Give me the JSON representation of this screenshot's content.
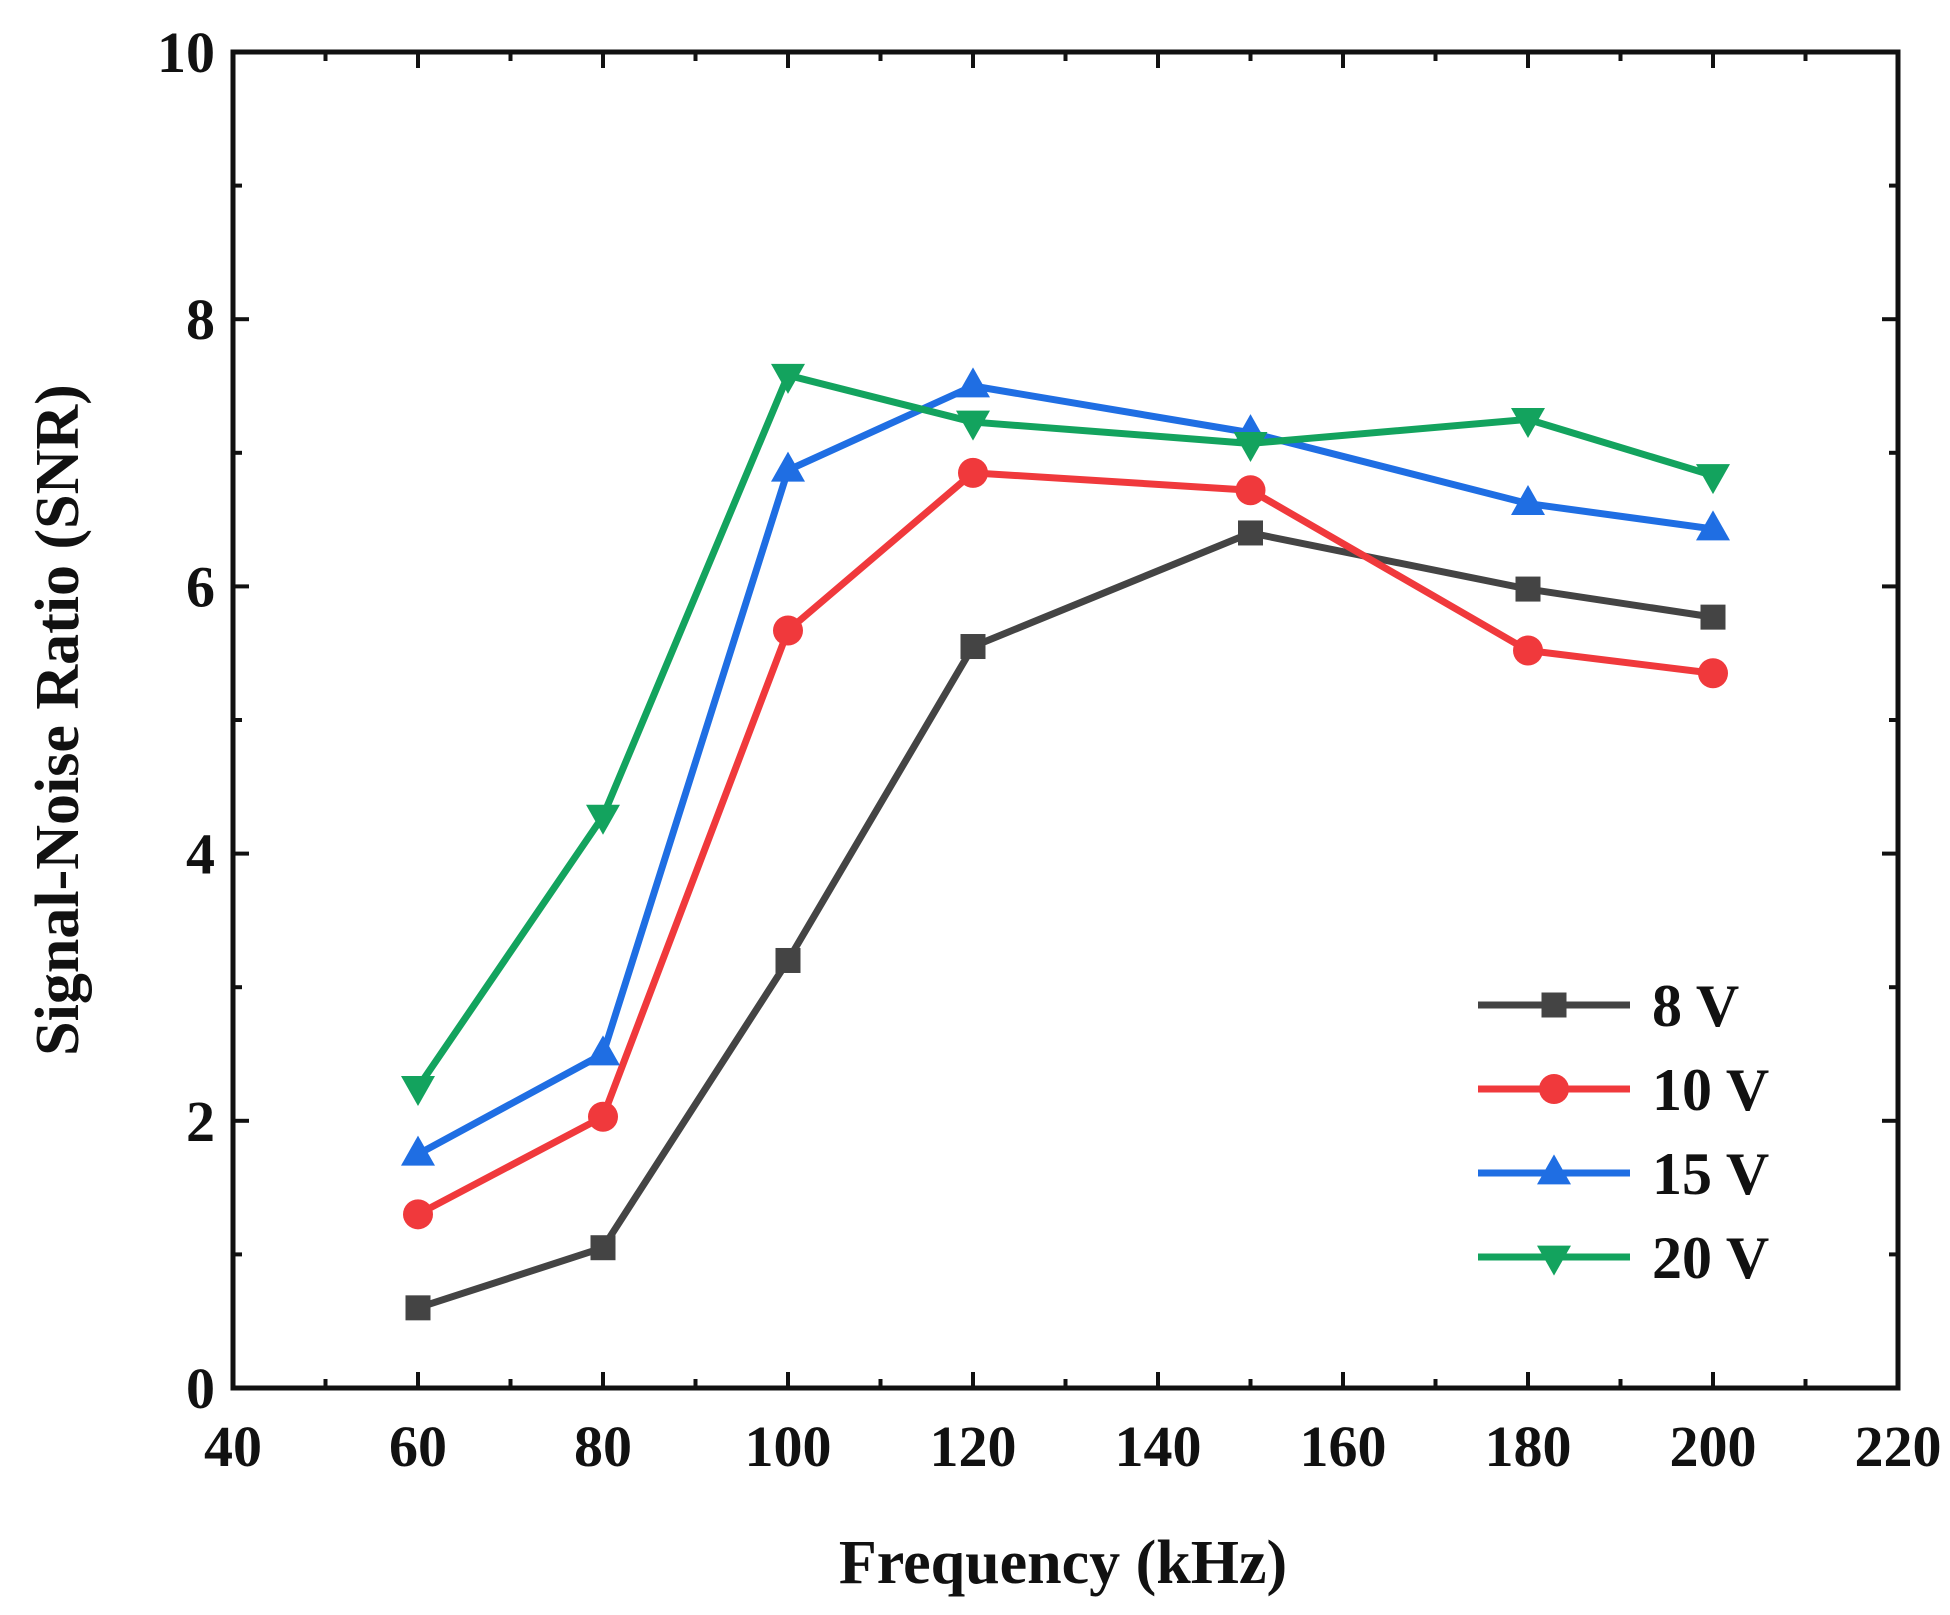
{
  "chart_data": {
    "type": "line",
    "title": "",
    "xlabel": "Frequency (kHz)",
    "ylabel": "Signal-Noise Ratio (SNR)",
    "xlim": [
      40,
      220
    ],
    "ylim": [
      0,
      10
    ],
    "x_major_ticks": [
      40,
      60,
      80,
      100,
      120,
      140,
      160,
      180,
      200,
      220
    ],
    "x_tick_labels": [
      "40",
      "60",
      "80",
      "100",
      "120",
      "140",
      "160",
      "180",
      "200",
      "220"
    ],
    "y_major_ticks": [
      0,
      2,
      4,
      6,
      8,
      10
    ],
    "y_tick_labels": [
      "0",
      "2",
      "4",
      "6",
      "8",
      "10"
    ],
    "x_minor_step": 10,
    "y_minor_step": 1,
    "grid": false,
    "legend_position": "bottom-right",
    "x": [
      60,
      80,
      100,
      120,
      150,
      180,
      200
    ],
    "series": [
      {
        "name": "8 V",
        "color": "#444444",
        "marker": "square",
        "values": [
          0.6,
          1.05,
          3.2,
          5.55,
          6.4,
          5.98,
          5.77
        ]
      },
      {
        "name": "10 V",
        "color": "#f0393c",
        "marker": "circle",
        "values": [
          1.3,
          2.03,
          5.67,
          6.85,
          6.72,
          5.52,
          5.35
        ]
      },
      {
        "name": "15 V",
        "color": "#1f6ee3",
        "marker": "triangle-up",
        "values": [
          1.75,
          2.5,
          6.87,
          7.5,
          7.15,
          6.62,
          6.43
        ]
      },
      {
        "name": "20 V",
        "color": "#13a35e",
        "marker": "triangle-down",
        "values": [
          2.25,
          4.28,
          7.58,
          7.23,
          7.07,
          7.25,
          6.83
        ]
      }
    ]
  }
}
